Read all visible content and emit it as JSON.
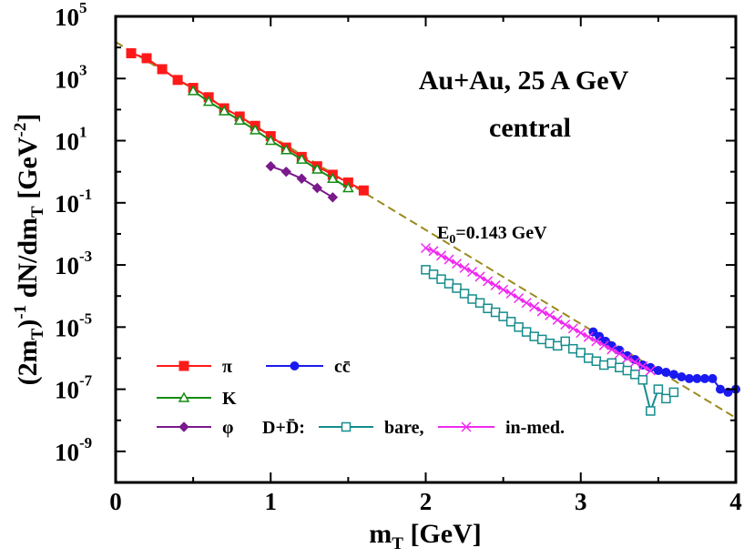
{
  "chart_data": {
    "type": "scatter",
    "title": "Au+Au,  25 A GeV",
    "subtitle": "central",
    "xlabel": "m_T [GeV]",
    "ylabel": "(2m_T)^-1 dN/dm_T [GeV^-2]",
    "xlim": [
      0,
      4
    ],
    "ylim": [
      1e-10,
      100000.0
    ],
    "yscale": "log",
    "x_ticks": [
      {
        "value": 0,
        "label": "0"
      },
      {
        "value": 1,
        "label": "1"
      },
      {
        "value": 2,
        "label": "2"
      },
      {
        "value": 3,
        "label": "3"
      },
      {
        "value": 4,
        "label": "4"
      }
    ],
    "y_ticks": [
      {
        "exp": 5,
        "base": "10",
        "label": "5"
      },
      {
        "exp": 3,
        "base": "10",
        "label": "3"
      },
      {
        "exp": 1,
        "base": "10",
        "label": "1"
      },
      {
        "exp": -1,
        "base": "10",
        "label": "-1"
      },
      {
        "exp": -3,
        "base": "10",
        "label": "-3"
      },
      {
        "exp": -5,
        "base": "10",
        "label": "-5"
      },
      {
        "exp": -7,
        "base": "10",
        "label": "-7"
      },
      {
        "exp": -9,
        "base": "10",
        "label": "-9"
      }
    ],
    "fit_line": {
      "label": "E0=0.143 GeV",
      "color": "#9b8a1e",
      "x": [
        0.0,
        4.0
      ],
      "y": [
        15000,
        1.2e-08
      ]
    },
    "series": [
      {
        "name": "π",
        "color": "#ff1a1a",
        "marker": "square-filled",
        "x": [
          0.1,
          0.2,
          0.3,
          0.4,
          0.5,
          0.6,
          0.7,
          0.8,
          0.9,
          1.0,
          1.1,
          1.2,
          1.3,
          1.4,
          1.5,
          1.6
        ],
        "y": [
          6500,
          4500,
          2000,
          900,
          500,
          250,
          110,
          60,
          30,
          14,
          6,
          3,
          1.5,
          0.8,
          0.45,
          0.25
        ]
      },
      {
        "name": "K",
        "color": "#148c14",
        "marker": "triangle-open",
        "x": [
          0.5,
          0.6,
          0.7,
          0.8,
          0.9,
          1.0,
          1.1,
          1.2,
          1.3,
          1.4,
          1.5
        ],
        "y": [
          400,
          180,
          90,
          45,
          22,
          10,
          5,
          2.5,
          1.2,
          0.6,
          0.3
        ]
      },
      {
        "name": "φ",
        "color": "#7a1a8c",
        "marker": "diamond-filled",
        "x": [
          1.0,
          1.1,
          1.2,
          1.3,
          1.4
        ],
        "y": [
          1.5,
          1.0,
          0.6,
          0.3,
          0.15
        ]
      },
      {
        "name": "cc̄",
        "color": "#1a1af0",
        "marker": "circle-filled",
        "x": [
          3.08,
          3.12,
          3.16,
          3.2,
          3.25,
          3.3,
          3.35,
          3.4,
          3.45,
          3.5,
          3.55,
          3.6,
          3.65,
          3.7,
          3.75,
          3.8,
          3.85,
          3.9,
          3.95,
          4.0
        ],
        "y": [
          7e-06,
          5e-06,
          3.5e-06,
          2.5e-06,
          1.8e-06,
          1.2e-06,
          9e-07,
          6e-07,
          5e-07,
          4e-07,
          3.5e-07,
          3e-07,
          2.5e-07,
          2.2e-07,
          2.2e-07,
          2.2e-07,
          2.2e-07,
          1e-07,
          8e-08,
          1e-07
        ]
      },
      {
        "name": "D+D̄: bare",
        "color": "#148c8c",
        "marker": "square-open",
        "x": [
          2.0,
          2.05,
          2.1,
          2.15,
          2.2,
          2.25,
          2.3,
          2.35,
          2.4,
          2.45,
          2.5,
          2.55,
          2.6,
          2.65,
          2.7,
          2.75,
          2.8,
          2.85,
          2.9,
          2.95,
          3.0,
          3.05,
          3.1,
          3.15,
          3.2,
          3.25,
          3.3,
          3.35,
          3.4,
          3.45,
          3.5,
          3.55,
          3.6
        ],
        "y": [
          0.0007,
          0.0005,
          0.00035,
          0.00025,
          0.00018,
          0.00012,
          8e-05,
          6e-05,
          4e-05,
          3e-05,
          2.2e-05,
          1.5e-05,
          1e-05,
          7e-06,
          5e-06,
          4e-06,
          3e-06,
          2.5e-06,
          3.5e-06,
          2e-06,
          1.5e-06,
          1e-06,
          8e-07,
          6e-07,
          7e-07,
          5e-07,
          4e-07,
          3e-07,
          2e-07,
          2e-08,
          1e-07,
          5e-08,
          8e-08
        ]
      },
      {
        "name": "D+D̄: in-med.",
        "color": "#f02af0",
        "marker": "cross",
        "x": [
          2.0,
          2.05,
          2.1,
          2.15,
          2.2,
          2.25,
          2.3,
          2.35,
          2.4,
          2.45,
          2.5,
          2.55,
          2.6,
          2.65,
          2.7,
          2.75,
          2.8,
          2.85,
          2.9,
          2.95,
          3.0,
          3.05,
          3.1,
          3.15,
          3.2,
          3.25,
          3.3,
          3.35,
          3.4,
          3.45
        ],
        "y": [
          0.0035,
          0.0028,
          0.002,
          0.0015,
          0.0011,
          0.0008,
          0.0006,
          0.00042,
          0.0003,
          0.00022,
          0.00016,
          0.00012,
          8.5e-05,
          6e-05,
          4.5e-05,
          3.2e-05,
          2.4e-05,
          1.7e-05,
          1.2e-05,
          9e-06,
          6.5e-06,
          4.8e-06,
          3.5e-06,
          2.6e-06,
          1.9e-06,
          1.4e-06,
          1e-06,
          7.5e-07,
          5.5e-07,
          4e-07
        ]
      }
    ],
    "legend": {
      "left": [
        {
          "label": "π",
          "series": 0
        },
        {
          "label": "K",
          "series": 1
        },
        {
          "label": "φ",
          "series": 2
        }
      ],
      "right": [
        {
          "label": "cc̄",
          "series": 3
        }
      ],
      "dd_prefix": "D+D̄:",
      "dd_items": [
        {
          "label": "bare,",
          "series": 4
        },
        {
          "label": "in-med.",
          "series": 5
        }
      ]
    }
  }
}
